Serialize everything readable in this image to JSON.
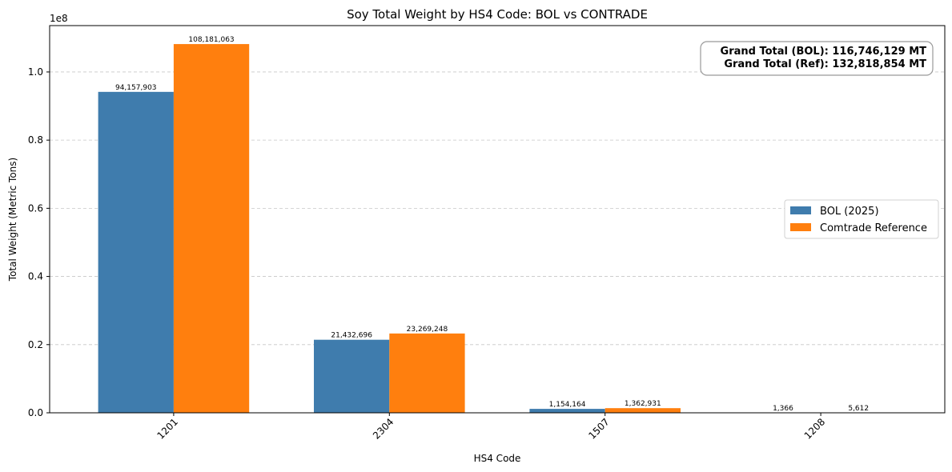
{
  "chart_data": {
    "type": "bar",
    "title": "Soy Total Weight by HS4 Code: BOL vs CONTRADE",
    "xlabel": "HS4 Code",
    "ylabel": "Total Weight (Metric Tons)",
    "y_scale_label": "1e8",
    "categories": [
      "1201",
      "2304",
      "1507",
      "1208"
    ],
    "series": [
      {
        "name": "BOL (2025)",
        "color": "#3f7cad",
        "values": [
          94157903,
          21432696,
          1154164,
          1366
        ],
        "labels": [
          "94,157,903",
          "21,432,696",
          "1,154,164",
          "1,366"
        ]
      },
      {
        "name": "Comtrade Reference",
        "color": "#ff7f0e",
        "values": [
          108181063,
          23269248,
          1362931,
          5612
        ],
        "labels": [
          "108,181,063",
          "23,269,248",
          "1,362,931",
          "5,612"
        ]
      }
    ],
    "ylim": [
      0,
      113600000
    ],
    "yticks": [
      0,
      20000000,
      40000000,
      60000000,
      80000000,
      100000000
    ],
    "ytick_labels": [
      "0.0",
      "0.2",
      "0.4",
      "0.6",
      "0.8",
      "1.0"
    ],
    "grid": "y-dashed",
    "legend_position": "center-right",
    "annotation": {
      "line1": "Grand Total (BOL): 116,746,129 MT",
      "line2": "Grand Total (Ref): 132,818,854 MT"
    }
  }
}
